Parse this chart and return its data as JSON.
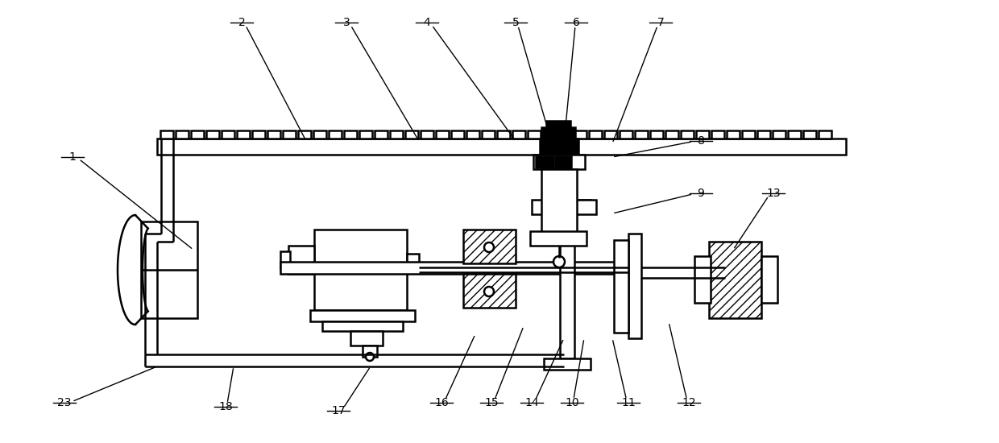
{
  "bg": "#ffffff",
  "lc": "#000000",
  "lw": 1.8,
  "lw_thin": 1.0,
  "fig_w": 12.4,
  "fig_h": 5.5,
  "dpi": 100,
  "labels": [
    [
      "1",
      90,
      195,
      240,
      310
    ],
    [
      "2",
      300,
      28,
      380,
      175
    ],
    [
      "3",
      430,
      28,
      520,
      175
    ],
    [
      "4",
      530,
      28,
      640,
      175
    ],
    [
      "5",
      640,
      28,
      685,
      178
    ],
    [
      "6",
      715,
      28,
      700,
      178
    ],
    [
      "7",
      820,
      28,
      760,
      178
    ],
    [
      "8",
      870,
      175,
      760,
      195
    ],
    [
      "9",
      870,
      240,
      760,
      265
    ],
    [
      "10",
      710,
      500,
      725,
      420
    ],
    [
      "11",
      780,
      500,
      760,
      420
    ],
    [
      "12",
      855,
      500,
      830,
      400
    ],
    [
      "13",
      960,
      240,
      910,
      310
    ],
    [
      "14",
      660,
      500,
      700,
      420
    ],
    [
      "15",
      610,
      500,
      650,
      405
    ],
    [
      "16",
      548,
      500,
      590,
      415
    ],
    [
      "17",
      420,
      510,
      460,
      455
    ],
    [
      "18",
      280,
      505,
      290,
      455
    ],
    [
      "23",
      80,
      500,
      195,
      455
    ]
  ]
}
